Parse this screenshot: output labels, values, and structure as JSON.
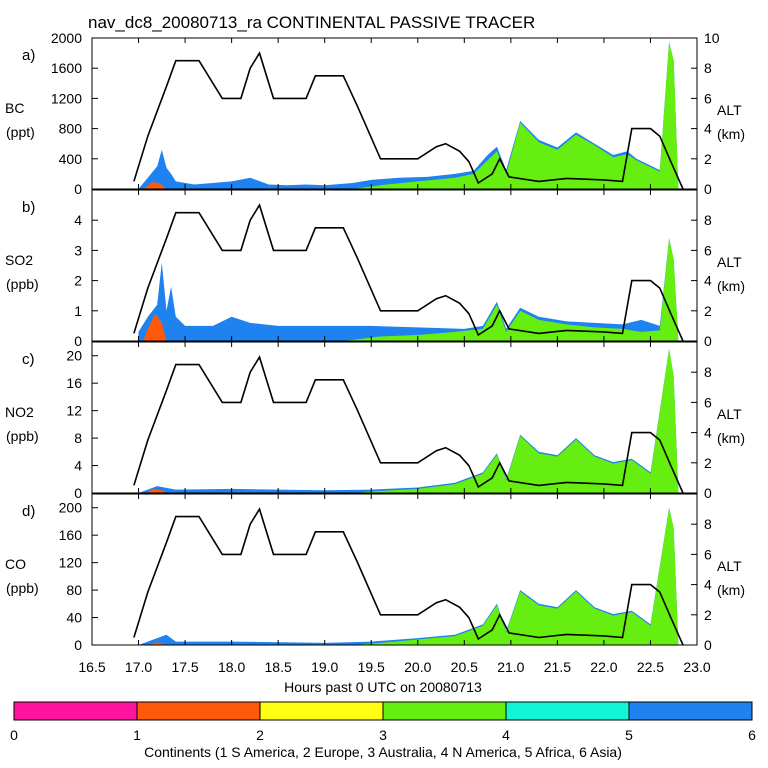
{
  "chart_data": {
    "type": "area",
    "title": "nav_dc8_20080713_ra CONTINENTAL PASSIVE TRACER",
    "xlabel": "Hours past 0 UTC on 20080713",
    "xlim": [
      16.5,
      23.0
    ],
    "x_ticks": [
      "16.5",
      "17.0",
      "17.5",
      "18.0",
      "18.5",
      "19.0",
      "19.5",
      "20.0",
      "20.5",
      "21.0",
      "21.5",
      "22.0",
      "22.5",
      "23.0"
    ],
    "y2label": "ALT",
    "y2unit": "(km)",
    "y2lim": [
      0,
      10
    ],
    "colors": {
      "s_america": "#ff5a0a",
      "n_america": "#66ee11",
      "asia": "#1e82f0",
      "altitude": "#000000"
    },
    "colorbar": {
      "label": "Continents (1 S America, 2 Europe, 3 Australia, 4 N America, 5 Africa, 6 Asia)",
      "ticks": [
        "0",
        "1",
        "2",
        "3",
        "4",
        "5",
        "6"
      ],
      "segments": [
        "#ff14a0",
        "#ff5a0a",
        "#ffff14",
        "#66ee11",
        "#11f5d5",
        "#1e82f0"
      ]
    },
    "altitude_km": [
      [
        16.95,
        0.5
      ],
      [
        17.1,
        3.5
      ],
      [
        17.3,
        6.8
      ],
      [
        17.4,
        8.5
      ],
      [
        17.65,
        8.5
      ],
      [
        17.9,
        6.0
      ],
      [
        18.1,
        6.0
      ],
      [
        18.2,
        8.0
      ],
      [
        18.3,
        9.0
      ],
      [
        18.45,
        6.0
      ],
      [
        18.8,
        6.0
      ],
      [
        18.9,
        7.5
      ],
      [
        19.2,
        7.5
      ],
      [
        19.35,
        5.5
      ],
      [
        19.6,
        2.0
      ],
      [
        20.0,
        2.0
      ],
      [
        20.2,
        2.8
      ],
      [
        20.3,
        3.0
      ],
      [
        20.45,
        2.5
      ],
      [
        20.55,
        1.8
      ],
      [
        20.65,
        0.4
      ],
      [
        20.8,
        1.0
      ],
      [
        20.88,
        2.0
      ],
      [
        20.98,
        0.8
      ],
      [
        21.3,
        0.5
      ],
      [
        21.6,
        0.7
      ],
      [
        22.0,
        0.6
      ],
      [
        22.2,
        0.5
      ],
      [
        22.3,
        4.0
      ],
      [
        22.5,
        4.0
      ],
      [
        22.6,
        3.5
      ],
      [
        22.72,
        1.8
      ],
      [
        22.85,
        0.0
      ]
    ],
    "panels": [
      {
        "label": "a)",
        "species": "BC",
        "unit": "(ppt)",
        "ylim": [
          0,
          2000
        ],
        "yticks": [
          "0",
          "400",
          "800",
          "1200",
          "1600",
          "2000"
        ],
        "asia_total": [
          [
            17.0,
            0
          ],
          [
            17.1,
            150
          ],
          [
            17.2,
            300
          ],
          [
            17.25,
            520
          ],
          [
            17.3,
            280
          ],
          [
            17.35,
            200
          ],
          [
            17.4,
            100
          ],
          [
            17.6,
            60
          ],
          [
            18.0,
            100
          ],
          [
            18.2,
            150
          ],
          [
            18.4,
            60
          ],
          [
            18.6,
            50
          ],
          [
            18.8,
            60
          ],
          [
            19.0,
            50
          ],
          [
            19.3,
            80
          ],
          [
            19.5,
            120
          ],
          [
            19.8,
            150
          ],
          [
            20.1,
            160
          ],
          [
            20.4,
            200
          ],
          [
            20.6,
            240
          ],
          [
            20.75,
            450
          ],
          [
            20.85,
            560
          ],
          [
            20.95,
            250
          ],
          [
            21.1,
            900
          ],
          [
            21.3,
            650
          ],
          [
            21.5,
            550
          ],
          [
            21.7,
            750
          ],
          [
            21.9,
            600
          ],
          [
            22.1,
            450
          ],
          [
            22.25,
            500
          ],
          [
            22.35,
            400
          ],
          [
            22.6,
            250
          ],
          [
            22.7,
            1950
          ],
          [
            22.75,
            1700
          ],
          [
            22.8,
            0
          ]
        ],
        "n_america": [
          [
            17.0,
            0
          ],
          [
            19.3,
            0
          ],
          [
            19.6,
            50
          ],
          [
            20.0,
            100
          ],
          [
            20.4,
            150
          ],
          [
            20.6,
            200
          ],
          [
            20.75,
            380
          ],
          [
            20.85,
            500
          ],
          [
            20.95,
            200
          ],
          [
            21.1,
            880
          ],
          [
            21.3,
            620
          ],
          [
            21.5,
            520
          ],
          [
            21.7,
            720
          ],
          [
            21.9,
            580
          ],
          [
            22.1,
            420
          ],
          [
            22.25,
            460
          ],
          [
            22.35,
            380
          ],
          [
            22.6,
            230
          ],
          [
            22.7,
            1950
          ],
          [
            22.75,
            1700
          ],
          [
            22.8,
            0
          ]
        ],
        "s_america": [
          [
            17.05,
            0
          ],
          [
            17.15,
            90
          ],
          [
            17.22,
            80
          ],
          [
            17.3,
            0
          ]
        ]
      },
      {
        "label": "b)",
        "species": "SO2",
        "unit": "(ppb)",
        "ylim": [
          0,
          5
        ],
        "yticks": [
          "0",
          "1",
          "2",
          "3",
          "4"
        ],
        "asia_total": [
          [
            17.0,
            0.3
          ],
          [
            17.1,
            0.8
          ],
          [
            17.2,
            1.2
          ],
          [
            17.25,
            2.6
          ],
          [
            17.3,
            1.0
          ],
          [
            17.35,
            1.8
          ],
          [
            17.4,
            0.8
          ],
          [
            17.5,
            0.5
          ],
          [
            17.8,
            0.5
          ],
          [
            18.0,
            0.8
          ],
          [
            18.2,
            0.6
          ],
          [
            18.5,
            0.5
          ],
          [
            18.8,
            0.5
          ],
          [
            19.1,
            0.5
          ],
          [
            19.5,
            0.5
          ],
          [
            20.0,
            0.45
          ],
          [
            20.5,
            0.4
          ],
          [
            20.7,
            0.5
          ],
          [
            20.85,
            1.3
          ],
          [
            20.95,
            0.4
          ],
          [
            21.1,
            1.1
          ],
          [
            21.3,
            0.8
          ],
          [
            21.6,
            0.65
          ],
          [
            21.9,
            0.6
          ],
          [
            22.2,
            0.55
          ],
          [
            22.4,
            0.7
          ],
          [
            22.6,
            0.5
          ],
          [
            22.7,
            3.4
          ],
          [
            22.75,
            2.7
          ],
          [
            22.8,
            0
          ]
        ],
        "n_america": [
          [
            17.0,
            0
          ],
          [
            19.2,
            0
          ],
          [
            19.6,
            0.15
          ],
          [
            20.0,
            0.2
          ],
          [
            20.4,
            0.3
          ],
          [
            20.7,
            0.4
          ],
          [
            20.85,
            1.2
          ],
          [
            20.95,
            0.3
          ],
          [
            21.1,
            1.0
          ],
          [
            21.3,
            0.7
          ],
          [
            21.6,
            0.55
          ],
          [
            21.9,
            0.45
          ],
          [
            22.2,
            0.4
          ],
          [
            22.4,
            0.3
          ],
          [
            22.6,
            0.35
          ],
          [
            22.7,
            3.4
          ],
          [
            22.75,
            2.7
          ],
          [
            22.8,
            0
          ]
        ],
        "s_america": [
          [
            17.05,
            0
          ],
          [
            17.1,
            0.4
          ],
          [
            17.18,
            0.9
          ],
          [
            17.25,
            0.6
          ],
          [
            17.3,
            0
          ]
        ]
      },
      {
        "label": "c)",
        "species": "NO2",
        "unit": "(ppb)",
        "ylim": [
          0,
          22
        ],
        "yticks": [
          "0",
          "4",
          "8",
          "12",
          "16",
          "20"
        ],
        "asia_total": [
          [
            17.0,
            0
          ],
          [
            17.2,
            1.0
          ],
          [
            17.4,
            0.5
          ],
          [
            18.0,
            0.6
          ],
          [
            19.0,
            0.4
          ],
          [
            19.5,
            0.5
          ],
          [
            20.0,
            0.8
          ],
          [
            20.4,
            1.5
          ],
          [
            20.7,
            3.0
          ],
          [
            20.85,
            5.8
          ],
          [
            20.95,
            2.0
          ],
          [
            21.1,
            8.5
          ],
          [
            21.3,
            6.0
          ],
          [
            21.5,
            5.5
          ],
          [
            21.7,
            8.0
          ],
          [
            21.9,
            5.5
          ],
          [
            22.1,
            4.5
          ],
          [
            22.3,
            5.0
          ],
          [
            22.5,
            3.0
          ],
          [
            22.7,
            21.0
          ],
          [
            22.75,
            17.0
          ],
          [
            22.8,
            0
          ]
        ],
        "n_america": [
          [
            17.0,
            0
          ],
          [
            19.3,
            0
          ],
          [
            19.6,
            0.3
          ],
          [
            20.0,
            0.6
          ],
          [
            20.4,
            1.3
          ],
          [
            20.7,
            2.8
          ],
          [
            20.85,
            5.6
          ],
          [
            20.95,
            1.8
          ],
          [
            21.1,
            8.3
          ],
          [
            21.3,
            5.8
          ],
          [
            21.5,
            5.3
          ],
          [
            21.7,
            7.8
          ],
          [
            21.9,
            5.3
          ],
          [
            22.1,
            4.3
          ],
          [
            22.3,
            4.8
          ],
          [
            22.5,
            2.8
          ],
          [
            22.7,
            21.0
          ],
          [
            22.75,
            17.0
          ],
          [
            22.8,
            0
          ]
        ],
        "s_america": [
          [
            17.1,
            0
          ],
          [
            17.15,
            0.6
          ],
          [
            17.25,
            0.4
          ],
          [
            17.3,
            0
          ]
        ]
      },
      {
        "label": "d)",
        "species": "CO",
        "unit": "(ppb)",
        "ylim": [
          0,
          220
        ],
        "yticks": [
          "0",
          "40",
          "80",
          "120",
          "160",
          "200"
        ],
        "asia_total": [
          [
            17.0,
            0
          ],
          [
            17.2,
            10
          ],
          [
            17.3,
            15
          ],
          [
            17.4,
            5
          ],
          [
            18.0,
            5
          ],
          [
            19.0,
            3
          ],
          [
            19.5,
            5
          ],
          [
            20.0,
            10
          ],
          [
            20.4,
            15
          ],
          [
            20.7,
            30
          ],
          [
            20.85,
            60
          ],
          [
            20.95,
            20
          ],
          [
            21.1,
            80
          ],
          [
            21.3,
            60
          ],
          [
            21.5,
            55
          ],
          [
            21.7,
            80
          ],
          [
            21.9,
            55
          ],
          [
            22.1,
            45
          ],
          [
            22.3,
            50
          ],
          [
            22.5,
            30
          ],
          [
            22.7,
            200
          ],
          [
            22.75,
            170
          ],
          [
            22.8,
            0
          ]
        ],
        "n_america": [
          [
            17.0,
            0
          ],
          [
            19.3,
            0
          ],
          [
            19.6,
            3
          ],
          [
            20.0,
            8
          ],
          [
            20.4,
            13
          ],
          [
            20.7,
            28
          ],
          [
            20.85,
            58
          ],
          [
            20.95,
            18
          ],
          [
            21.1,
            78
          ],
          [
            21.3,
            58
          ],
          [
            21.5,
            53
          ],
          [
            21.7,
            78
          ],
          [
            21.9,
            53
          ],
          [
            22.1,
            43
          ],
          [
            22.3,
            48
          ],
          [
            22.5,
            28
          ],
          [
            22.7,
            200
          ],
          [
            22.75,
            170
          ],
          [
            22.8,
            0
          ]
        ],
        "s_america": [
          [
            17.1,
            0
          ],
          [
            17.2,
            4
          ],
          [
            17.3,
            0
          ]
        ]
      }
    ]
  }
}
